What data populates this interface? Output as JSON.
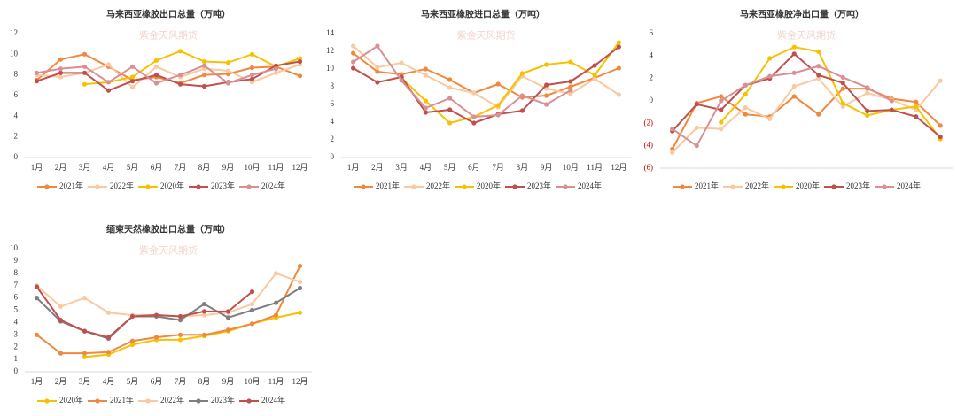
{
  "watermark": "紫金天风期货",
  "chart_data": [
    {
      "type": "line",
      "title": "马来西亚橡胶出口总量（万吨）",
      "categories": [
        "1月",
        "2月",
        "3月",
        "4月",
        "5月",
        "6月",
        "7月",
        "8月",
        "9月",
        "10月",
        "11月",
        "12月"
      ],
      "ylim": [
        0,
        12
      ],
      "yticks": [
        0,
        2,
        4,
        6,
        8,
        10,
        12
      ],
      "grid": false,
      "series": [
        {
          "name": "2021年",
          "color": "#f0883e",
          "values": [
            7.5,
            9.5,
            10,
            8.8,
            7.5,
            7.8,
            7.2,
            8,
            8.1,
            8.7,
            8.8,
            7.9
          ]
        },
        {
          "name": "2022年",
          "color": "#f9c9a1",
          "values": [
            8,
            7.8,
            8.2,
            9,
            6.8,
            8.8,
            7.8,
            8.6,
            8.4,
            7.3,
            8.2,
            9
          ]
        },
        {
          "name": "2020年",
          "color": "#f6c100",
          "values": [
            null,
            null,
            7.1,
            7.3,
            7.8,
            9.4,
            10.3,
            9.3,
            9.2,
            10,
            8.8,
            9.6
          ]
        },
        {
          "name": "2023年",
          "color": "#c0504d",
          "values": [
            7.4,
            8.2,
            8.2,
            6.5,
            7.4,
            8,
            7.1,
            6.9,
            7.3,
            7.6,
            8.9,
            9.3
          ]
        },
        {
          "name": "2024年",
          "color": "#d98f96",
          "values": [
            8.2,
            8.6,
            8.8,
            7.3,
            8.8,
            7.2,
            8,
            8.9,
            7.2,
            8,
            8.6,
            null
          ]
        }
      ]
    },
    {
      "type": "line",
      "title": "马来西亚橡胶进口总量（万吨）",
      "categories": [
        "1月",
        "2月",
        "3月",
        "4月",
        "5月",
        "6月",
        "7月",
        "8月",
        "9月",
        "10月",
        "11月",
        "12月"
      ],
      "ylim": [
        0,
        14
      ],
      "yticks": [
        0,
        2,
        4,
        6,
        8,
        10,
        12,
        14
      ],
      "grid": false,
      "series": [
        {
          "name": "2021年",
          "color": "#f0883e",
          "values": [
            11.8,
            9.7,
            9.4,
            10,
            8.8,
            7.3,
            8.3,
            6.8,
            7,
            8,
            9,
            10.1
          ]
        },
        {
          "name": "2022年",
          "color": "#f9c9a1",
          "values": [
            12.6,
            10.2,
            10.7,
            9.3,
            7.9,
            7.3,
            5.7,
            9.2,
            7.8,
            7.2,
            8.9,
            7.1
          ]
        },
        {
          "name": "2020年",
          "color": "#f6c100",
          "values": [
            null,
            null,
            9,
            6.4,
            3.9,
            4.6,
            5.9,
            9.5,
            10.5,
            10.8,
            9.3,
            13
          ]
        },
        {
          "name": "2023年",
          "color": "#c0504d",
          "values": [
            10.1,
            8.5,
            9.1,
            5.1,
            5.4,
            3.9,
            4.9,
            5.3,
            8.2,
            8.6,
            10.4,
            12.5
          ]
        },
        {
          "name": "2024年",
          "color": "#d98f96",
          "values": [
            10.8,
            12.6,
            8.7,
            5.6,
            6.7,
            4.6,
            4.8,
            7,
            6,
            7.6,
            null,
            null
          ]
        }
      ]
    },
    {
      "type": "line",
      "title": "马来西亚橡胶净出口量（万吨）",
      "ylim": [
        -6,
        6
      ],
      "negative_tick_color": "#c00000",
      "grid": false,
      "yticks": [
        {
          "value": -6,
          "label": "(6)"
        },
        {
          "value": -4,
          "label": "(4)"
        },
        {
          "value": -2,
          "label": "(2)"
        },
        0,
        2,
        4,
        6
      ],
      "series": [
        {
          "name": "2021年",
          "color": "#f0883e",
          "values": [
            -4.3,
            -0.2,
            0.4,
            -1.2,
            -1.4,
            0.4,
            -1.2,
            1.1,
            1.1,
            0.2,
            -0.1,
            -2.2
          ]
        },
        {
          "name": "2022年",
          "color": "#f9c9a1",
          "values": [
            -4.6,
            -2.4,
            -2.5,
            -0.6,
            -1.6,
            1.3,
            2,
            -0.5,
            0.7,
            0.1,
            -0.8,
            1.8
          ]
        },
        {
          "name": "2020年",
          "color": "#f6c100",
          "values": [
            null,
            null,
            -1.9,
            0.6,
            3.8,
            4.8,
            4.4,
            -0.2,
            -1.3,
            -0.8,
            -0.5,
            -3.4
          ]
        },
        {
          "name": "2023年",
          "color": "#c0504d",
          "values": [
            -2.7,
            -0.3,
            -0.8,
            1.4,
            2,
            4.2,
            2.3,
            1.6,
            -0.9,
            -0.8,
            -1.4,
            -3.2
          ]
        },
        {
          "name": "2024年",
          "color": "#d98f96",
          "values": [
            -2.5,
            -4,
            0,
            1.4,
            2.2,
            2.5,
            3.1,
            2.1,
            1.2,
            0,
            null,
            null
          ]
        }
      ]
    },
    {
      "type": "line",
      "title": "缅柬天然橡胶出口总量（万吨）",
      "categories": [
        "1月",
        "2月",
        "3月",
        "4月",
        "5月",
        "6月",
        "7月",
        "8月",
        "9月",
        "10月",
        "11月",
        "12月"
      ],
      "ylim": [
        0,
        10
      ],
      "yticks": [
        0,
        1,
        2,
        3,
        4,
        5,
        6,
        7,
        8,
        9,
        10
      ],
      "grid": false,
      "series": [
        {
          "name": "2020年",
          "color": "#f6c100",
          "values": [
            null,
            null,
            1.2,
            1.4,
            2.2,
            2.6,
            2.6,
            2.9,
            3.3,
            3.9,
            4.4,
            4.8
          ]
        },
        {
          "name": "2021年",
          "color": "#f0883e",
          "values": [
            3,
            1.5,
            1.5,
            1.6,
            2.5,
            2.8,
            3,
            3,
            3.4,
            3.9,
            4.6,
            8.6
          ]
        },
        {
          "name": "2022年",
          "color": "#f9c9a1",
          "values": [
            7,
            5.3,
            6,
            4.8,
            4.6,
            4.6,
            4.5,
            4.6,
            4.8,
            5.5,
            8,
            7.3
          ]
        },
        {
          "name": "2023年",
          "color": "#7f7f7f",
          "values": [
            6,
            4.1,
            3.3,
            2.7,
            4.5,
            4.5,
            4.2,
            5.5,
            4.4,
            5,
            5.6,
            6.8
          ]
        },
        {
          "name": "2024年",
          "color": "#c0504d",
          "values": [
            6.9,
            4.2,
            3.3,
            2.8,
            4.5,
            4.6,
            4.5,
            4.9,
            4.9,
            6.5,
            null,
            null
          ]
        }
      ]
    }
  ]
}
